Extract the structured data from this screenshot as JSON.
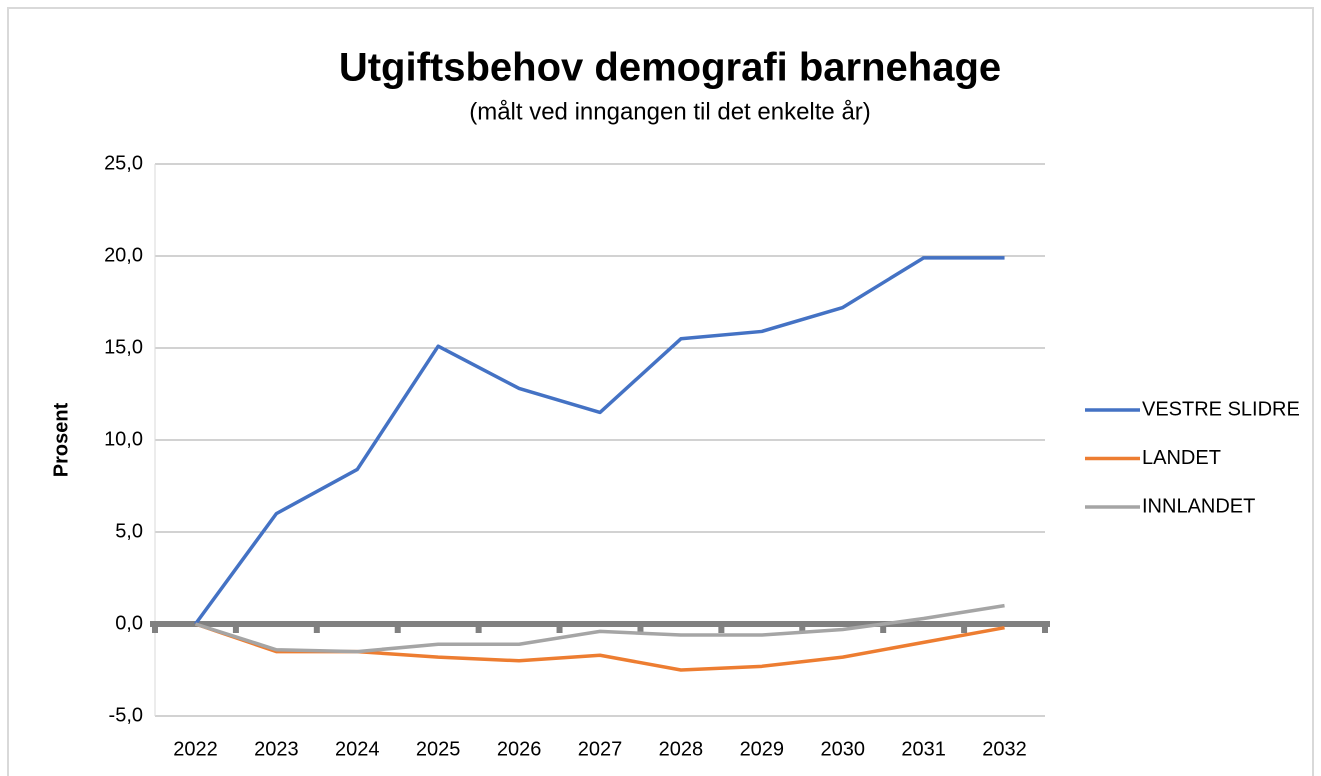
{
  "chart_data": {
    "type": "line",
    "title": "Utgiftsbehov demografi barnehage",
    "subtitle": "(målt ved inngangen til det enkelte år)",
    "y_label": "Prosent",
    "categories": [
      "2022",
      "2023",
      "2024",
      "2025",
      "2026",
      "2027",
      "2028",
      "2029",
      "2030",
      "2031",
      "2032"
    ],
    "series": [
      {
        "name": "VESTRE SLIDRE",
        "color": "#4472c4",
        "values": [
          0,
          6.0,
          8.4,
          15.1,
          12.8,
          11.5,
          15.5,
          15.9,
          17.2,
          19.9,
          19.9
        ]
      },
      {
        "name": "LANDET",
        "color": "#ed7d31",
        "values": [
          0,
          -1.5,
          -1.5,
          -1.8,
          -2.0,
          -1.7,
          -2.5,
          -2.3,
          -1.8,
          -1.0,
          -0.2
        ]
      },
      {
        "name": "INNLANDET",
        "color": "#a5a5a5",
        "values": [
          0,
          -1.4,
          -1.5,
          -1.1,
          -1.1,
          -0.4,
          -0.6,
          -0.6,
          -0.3,
          0.3,
          1.0
        ]
      }
    ],
    "ylim": [
      -5,
      25
    ],
    "yticks": [
      {
        "value": -5,
        "label": "-5,0"
      },
      {
        "value": 0,
        "label": "0,0"
      },
      {
        "value": 5,
        "label": "5,0"
      },
      {
        "value": 10,
        "label": "10,0"
      },
      {
        "value": 15,
        "label": "15,0"
      },
      {
        "value": 20,
        "label": "20,0"
      },
      {
        "value": 25,
        "label": "25,0"
      }
    ],
    "grid": true,
    "legend": "right"
  }
}
